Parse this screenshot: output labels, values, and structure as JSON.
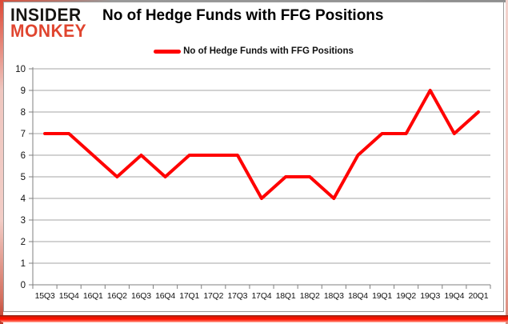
{
  "logo": {
    "line1": "INSIDER",
    "line2": "MONKEY"
  },
  "header": {
    "title": "No of Hedge Funds with FFG Positions"
  },
  "legend": {
    "label": "No of Hedge Funds with FFG Positions"
  },
  "colors": {
    "line": "#FF0000",
    "logo_black": "#171512",
    "logo_red": "#E0452F",
    "gridline": "#A6A6A6",
    "axis": "#7F7F7F",
    "frame_red": "#FF0000",
    "text": "#000000"
  },
  "chart_data": {
    "type": "line",
    "title": "No of Hedge Funds with FFG Positions",
    "categories": [
      "15Q3",
      "15Q4",
      "16Q1",
      "16Q2",
      "16Q3",
      "16Q4",
      "17Q1",
      "17Q2",
      "17Q3",
      "17Q4",
      "18Q1",
      "18Q2",
      "18Q3",
      "18Q4",
      "19Q1",
      "19Q2",
      "19Q3",
      "19Q4",
      "20Q1"
    ],
    "series": [
      {
        "name": "No of Hedge Funds with FFG Positions",
        "values": [
          7,
          7,
          6,
          5,
          6,
          5,
          6,
          6,
          6,
          4,
          5,
          5,
          4,
          6,
          7,
          7,
          9,
          7,
          8
        ]
      }
    ],
    "xlabel": "",
    "ylabel": "",
    "ylim": [
      0,
      10
    ],
    "ytick_step": 1,
    "grid": true,
    "legend_position": "top"
  }
}
